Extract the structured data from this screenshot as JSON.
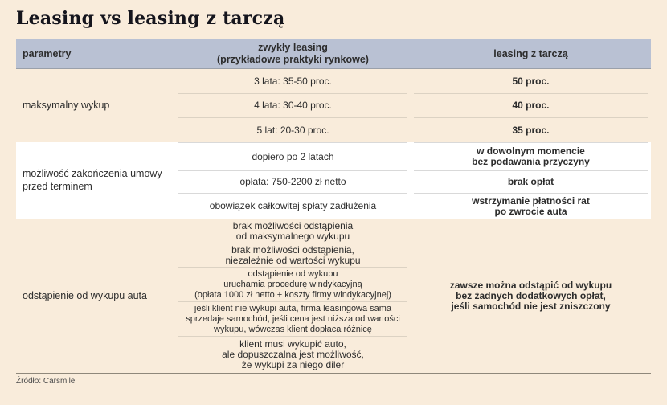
{
  "title": "Leasing vs leasing z tarczą",
  "colors": {
    "page_bg": "#f9ecdb",
    "header_bg": "#b9c1d3",
    "white_band": "#ffffff",
    "line_cream": "#dcd2c3",
    "line_white": "#d9d9d9",
    "footer_rule": "#8f887b",
    "title_text": "#15151d",
    "text": "#2d2d2d"
  },
  "table": {
    "headers": {
      "col1": "parametry",
      "col2": "zwykły leasing\n(przykładowe praktyki rynkowe)",
      "col3": "leasing z tarczą"
    },
    "sections": [
      {
        "label": "maksymalny wykup",
        "rows": [
          {
            "mid": "3 lata: 35-50 proc.",
            "right": "50 proc."
          },
          {
            "mid": "4 lata: 30-40 proc.",
            "right": "40 proc."
          },
          {
            "mid": "5 lat: 20-30 proc.",
            "right": "35 proc."
          }
        ]
      },
      {
        "label": "możliwość zakończenia umowy\nprzed terminem",
        "rows": [
          {
            "mid": "dopiero po 2 latach",
            "right": "w dowolnym momencie\nbez podawania przyczyny"
          },
          {
            "mid": "opłata: 750-2200 zł netto",
            "right": "brak opłat"
          },
          {
            "mid": "obowiązek całkowitej spłaty zadłużenia",
            "right": "wstrzymanie płatności rat\npo zwrocie auta"
          }
        ]
      },
      {
        "label": "odstąpienie od wykupu auta",
        "rows": [
          {
            "mid": "brak możliwości odstąpienia\nod maksymalnego wykupu"
          },
          {
            "mid": "brak możliwości odstąpienia,\nniezależnie od wartości wykupu"
          },
          {
            "mid": "odstąpienie od wykupu\nuruchamia procedurę windykacyjną\n(opłata 1000 zł netto + koszty firmy windykacyjnej)"
          },
          {
            "mid": "jeśli klient nie wykupi auta, firma leasingowa sama\nsprzedaje samochód, jeśli cena jest niższa od wartości\nwykupu, wówczas klient dopłaca różnicę"
          },
          {
            "mid": "klient musi wykupić auto,\nale dopuszczalna jest możliwość,\nże wykupi za niego diler"
          }
        ],
        "right_merged": "zawsze można odstąpić od wykupu\nbez żadnych dodatkowych opłat,\njeśli samochód nie jest zniszczony"
      }
    ]
  },
  "source": "Źródło: Carsmile",
  "chart_data": {
    "type": "table",
    "title": "Leasing vs leasing z tarczą",
    "columns": [
      "parametry",
      "zwykły leasing (przykładowe praktyki rynkowe)",
      "leasing z tarczą"
    ],
    "rows": [
      [
        "maksymalny wykup",
        "3 lata: 35-50 proc.",
        "50 proc."
      ],
      [
        "maksymalny wykup",
        "4 lata: 30-40 proc.",
        "40 proc."
      ],
      [
        "maksymalny wykup",
        "5 lat: 20-30 proc.",
        "35 proc."
      ],
      [
        "możliwość zakończenia umowy przed terminem",
        "dopiero po 2 latach",
        "w dowolnym momencie bez podawania przyczyny"
      ],
      [
        "możliwość zakończenia umowy przed terminem",
        "opłata: 750-2200 zł netto",
        "brak opłat"
      ],
      [
        "możliwość zakończenia umowy przed terminem",
        "obowiązek całkowitej spłaty zadłużenia",
        "wstrzymanie płatności rat po zwrocie auta"
      ],
      [
        "odstąpienie od wykupu auta",
        "brak możliwości odstąpienia od maksymalnego wykupu",
        "zawsze można odstąpić od wykupu bez żadnych dodatkowych opłat, jeśli samochód nie jest zniszczony"
      ],
      [
        "odstąpienie od wykupu auta",
        "brak możliwości odstąpienia, niezależnie od wartości wykupu",
        "zawsze można odstąpić od wykupu bez żadnych dodatkowych opłat, jeśli samochód nie jest zniszczony"
      ],
      [
        "odstąpienie od wykupu auta",
        "odstąpienie od wykupu uruchamia procedurę windykacyjną (opłata 1000 zł netto + koszty firmy windykacyjnej)",
        "zawsze można odstąpić od wykupu bez żadnych dodatkowych opłat, jeśli samochód nie jest zniszczony"
      ],
      [
        "odstąpienie od wykupu auta",
        "jeśli klient nie wykupi auta, firma leasingowa sama sprzedaje samochód, jeśli cena jest niższa od wartości wykupu, wówczas klient dopłaca różnicę",
        "zawsze można odstąpić od wykupu bez żadnych dodatkowych opłat, jeśli samochód nie jest zniszczony"
      ],
      [
        "odstąpienie od wykupu auta",
        "klient musi wykupić auto, ale dopuszczalna jest możliwość, że wykupi za niego diler",
        "zawsze można odstąpić od wykupu bez żadnych dodatkowych opłat, jeśli samochód nie jest zniszczony"
      ]
    ],
    "source": "Źródło: Carsmile"
  }
}
